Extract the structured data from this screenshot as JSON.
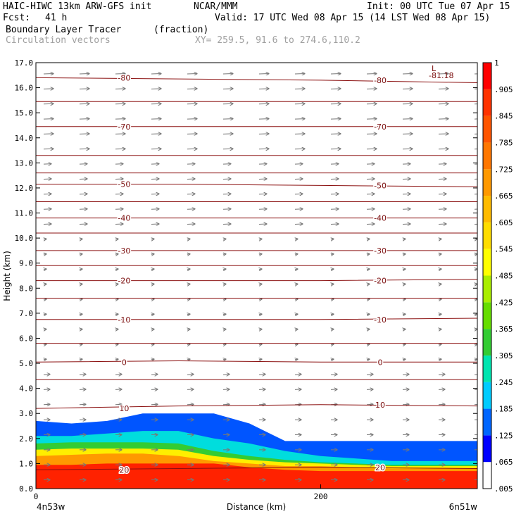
{
  "header": {
    "model": "HAIC-HIWC 13km ARW-GFS init",
    "center": "NCAR/MMM",
    "init": "Init: 00 UTC Tue 07 Apr 15",
    "fcst_label": "Fcst:",
    "fcst_value": "41 h",
    "valid": "Valid: 17 UTC Wed 08 Apr 15 (14 LST Wed 08 Apr 15)",
    "field_name": "Boundary Layer Tracer",
    "field_units": "(fraction)",
    "overlay_name": "Circulation vectors",
    "xy": "XY= 259.5, 91.6 to 274.6,110.2"
  },
  "chart_data": {
    "type": "heatmap",
    "title": "Boundary Layer Tracer",
    "ylabel": "Height (km)",
    "xlabel": "Distance (km)",
    "x_left_label": "4n53w",
    "x_right_label": "6n51w",
    "xlim": [
      0,
      310
    ],
    "ylim": [
      0,
      17
    ],
    "y_ticks": [
      "0.0",
      "1.0",
      "2.0",
      "3.0",
      "4.0",
      "5.0",
      "6.0",
      "7.0",
      "8.0",
      "9.0",
      "10.0",
      "11.0",
      "12.0",
      "13.0",
      "14.0",
      "15.0",
      "16.0",
      "17.0"
    ],
    "x_ticks": [
      {
        "value": 0,
        "label": "0"
      },
      {
        "value": 200,
        "label": "200"
      }
    ],
    "colorbar_labels": [
      ".005",
      ".065",
      ".125",
      ".185",
      ".245",
      ".305",
      ".365",
      ".425",
      ".485",
      ".545",
      ".605",
      ".665",
      ".725",
      ".785",
      ".845",
      ".905",
      "1"
    ],
    "tracer_layers": [
      {
        "color": "#ff2200",
        "top_km": [
          0.95,
          0.95,
          1.0,
          1.0,
          1.0,
          1.0,
          0.85,
          0.75,
          0.7,
          0.7,
          0.7,
          0.7,
          0.7
        ]
      },
      {
        "color": "#ff9900",
        "top_km": [
          1.3,
          1.35,
          1.4,
          1.4,
          1.3,
          1.1,
          1.0,
          0.9,
          0.9,
          0.85,
          0.8,
          0.8,
          0.8
        ]
      },
      {
        "color": "#ffee00",
        "top_km": [
          1.55,
          1.6,
          1.6,
          1.6,
          1.55,
          1.3,
          1.15,
          1.05,
          1.0,
          0.95,
          0.9,
          0.9,
          0.9
        ]
      },
      {
        "color": "#33cc33",
        "top_km": [
          1.8,
          1.85,
          1.85,
          1.85,
          1.8,
          1.5,
          1.3,
          1.15,
          1.05,
          1.0,
          0.95,
          0.95,
          0.95
        ]
      },
      {
        "color": "#00dddd",
        "top_km": [
          2.1,
          2.1,
          2.2,
          2.3,
          2.3,
          2.0,
          1.8,
          1.5,
          1.3,
          1.2,
          1.1,
          1.1,
          1.1
        ]
      },
      {
        "color": "#0055ff",
        "top_km": [
          2.7,
          2.6,
          2.7,
          3.0,
          3.0,
          3.0,
          2.6,
          1.9,
          1.9,
          1.9,
          1.9,
          1.9,
          1.9
        ]
      }
    ],
    "tracer_x_km": [
      0,
      25,
      50,
      75,
      100,
      125,
      150,
      175,
      200,
      225,
      250,
      275,
      310
    ],
    "contours": [
      {
        "label": "-80",
        "levels_km": [
          16.4,
          16.35,
          16.3,
          16.2
        ]
      },
      {
        "label": "-70",
        "levels_km": [
          14.45,
          14.45,
          14.45,
          14.45
        ]
      },
      {
        "label": "-50",
        "levels_km": [
          12.15,
          12.15,
          12.1,
          12.05
        ]
      },
      {
        "label": "-40",
        "levels_km": [
          10.8,
          10.8,
          10.8,
          10.8
        ]
      },
      {
        "label": "-30",
        "levels_km": [
          9.5,
          9.5,
          9.5,
          9.5
        ]
      },
      {
        "label": "-20",
        "levels_km": [
          8.3,
          8.3,
          8.3,
          8.35
        ]
      },
      {
        "label": "-10",
        "levels_km": [
          6.75,
          6.75,
          6.75,
          6.8
        ]
      },
      {
        "label": "0",
        "levels_km": [
          5.05,
          5.1,
          5.05,
          5.05
        ]
      },
      {
        "label": "10",
        "levels_km": [
          3.2,
          3.3,
          3.35,
          3.3
        ]
      },
      {
        "label": "20",
        "levels_km": [
          0.75,
          0.8,
          0.85,
          0.8
        ]
      }
    ],
    "unlabeled_contours_km": [
      15.45,
      13.3,
      12.6,
      11.45,
      10.2,
      8.9,
      7.6,
      5.8,
      4.35
    ],
    "low_label": "L",
    "low_value": "-81.18"
  }
}
